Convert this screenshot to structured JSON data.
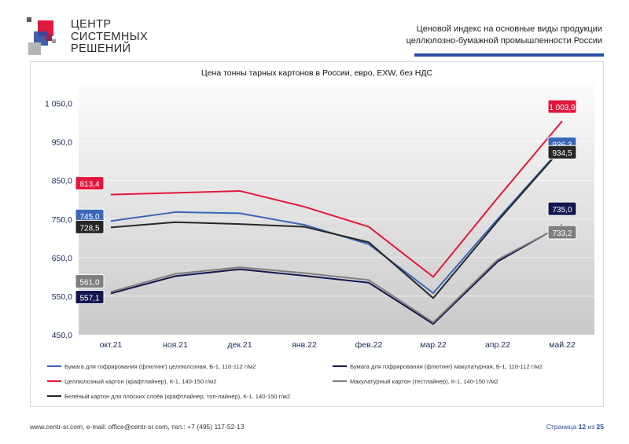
{
  "header": {
    "logo_lines": [
      "ЦЕНТР",
      "СИСТЕМНЫХ",
      "РЕШЕНИЙ"
    ],
    "doc_title_line1": "Ценовой индекс на основные виды продукции",
    "doc_title_line2": "целлюлозно-бумажной промышленности России"
  },
  "footer": {
    "contacts": "www.centr-sr.com, e-mail: office@centr-sr.com, тел.: +7 (495) 117-52-13",
    "page_prefix": "Страница",
    "page_current": "12",
    "page_sep": "из",
    "page_total": "25"
  },
  "colors": {
    "accent_blue": "#2e4ea1",
    "brand_red": "#e2173b"
  },
  "chart_data": {
    "type": "line",
    "title": "Цена тонны тарных картонов в России, евро, EXW, без НДС",
    "categories": [
      "окт.21",
      "ноя.21",
      "дек.21",
      "янв.22",
      "фев.22",
      "мар.22",
      "апр.22",
      "май.22"
    ],
    "ylim": [
      450,
      1100
    ],
    "yticks": [
      "1 050,0",
      "950,0",
      "850,0",
      "750,0",
      "650,0",
      "550,0",
      "450,0"
    ],
    "ytick_values": [
      1050,
      950,
      850,
      750,
      650,
      550,
      450
    ],
    "grid": true,
    "legend_position": "bottom",
    "series": [
      {
        "name": "Бумага для гофрирования (флютинг) целлюлозная, Б-1, 110-112 г/м2",
        "color": "#3a66b8",
        "values": [
          745.0,
          768,
          765,
          735,
          685,
          558,
          750,
          936.3
        ],
        "labels": [
          {
            "index": 0,
            "text": "745,0"
          },
          {
            "index": 7,
            "text": "936,3"
          }
        ]
      },
      {
        "name": "Бумага для гофрирования (флютинг) макулатурная, Б-1, 110-112 г/м2",
        "color": "#14174f",
        "values": [
          557.1,
          602,
          620,
          603,
          585,
          478,
          640,
          735.0
        ],
        "labels": [
          {
            "index": 0,
            "text": "557,1"
          },
          {
            "index": 7,
            "text": "735,0"
          }
        ]
      },
      {
        "name": "Целлюлозный картон (крафтлайнер), К-1, 140-150 г/м2",
        "color": "#e2173b",
        "values": [
          813.4,
          818,
          823,
          782,
          730,
          600,
          805,
          1003.9
        ],
        "labels": [
          {
            "index": 0,
            "text": "813,4"
          },
          {
            "index": 7,
            "text": "1 003,9"
          }
        ]
      },
      {
        "name": "Макулатурный картон (тестлайнер), К-1, 140-150 г/м2",
        "color": "#7f7f7f",
        "values": [
          561.0,
          608,
          625,
          610,
          592,
          482,
          645,
          733.2
        ],
        "labels": [
          {
            "index": 0,
            "text": "561,0"
          },
          {
            "index": 7,
            "text": "733,2"
          }
        ]
      },
      {
        "name": "Белёный картон для плоских слоёв (крафтлайнер, топ-лайнер), К-1, 140-150 г/м2",
        "color": "#262626",
        "values": [
          728.5,
          742,
          737,
          730,
          690,
          545,
          745,
          934.5
        ],
        "labels": [
          {
            "index": 0,
            "text": "728,5"
          },
          {
            "index": 7,
            "text": "934,5"
          }
        ]
      }
    ]
  }
}
